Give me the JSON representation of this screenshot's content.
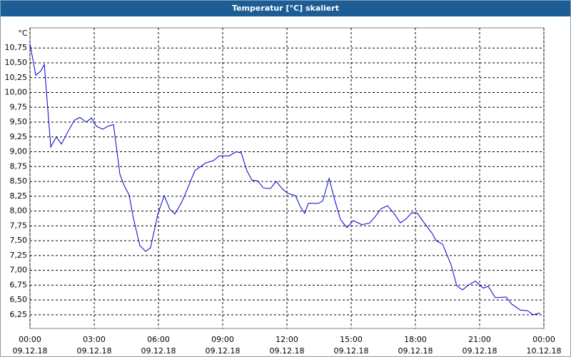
{
  "chart_data": {
    "type": "line",
    "title": "Temperatur [°C] skaliert",
    "ylabel": "°C",
    "grid": true,
    "ylim": [
      6.02,
      11.09
    ],
    "yticks": [
      {
        "value": 6.25,
        "label": "6,25"
      },
      {
        "value": 6.5,
        "label": "6,50"
      },
      {
        "value": 6.75,
        "label": "6,75"
      },
      {
        "value": 7,
        "label": "7,00"
      },
      {
        "value": 7.25,
        "label": "7,25"
      },
      {
        "value": 7.5,
        "label": "7,50"
      },
      {
        "value": 7.75,
        "label": "7,75"
      },
      {
        "value": 8,
        "label": "8,00"
      },
      {
        "value": 8.25,
        "label": "8,25"
      },
      {
        "value": 8.5,
        "label": "8,50"
      },
      {
        "value": 8.75,
        "label": "8,75"
      },
      {
        "value": 9,
        "label": "9,00"
      },
      {
        "value": 9.25,
        "label": "9,25"
      },
      {
        "value": 9.5,
        "label": "9,50"
      },
      {
        "value": 9.75,
        "label": "9,75"
      },
      {
        "value": 10,
        "label": "10,00"
      },
      {
        "value": 10.25,
        "label": "10,25"
      },
      {
        "value": 10.5,
        "label": "10,50"
      },
      {
        "value": 10.75,
        "label": "10,75"
      }
    ],
    "xlim": [
      0,
      24
    ],
    "xticks": [
      {
        "value": 0,
        "label": "00:00\n09.12.18"
      },
      {
        "value": 3,
        "label": "03:00\n09.12.18"
      },
      {
        "value": 6,
        "label": "06:00\n09.12.18"
      },
      {
        "value": 9,
        "label": "09:00\n09.12.18"
      },
      {
        "value": 12,
        "label": "12:00\n09.12.18"
      },
      {
        "value": 15,
        "label": "15:00\n09.12.18"
      },
      {
        "value": 18,
        "label": "18:00\n09.12.18"
      },
      {
        "value": 21,
        "label": "21:00\n09.12.18"
      },
      {
        "value": 24,
        "label": "00:00\n10.12.18"
      }
    ],
    "x": [
      0,
      0.27,
      0.5,
      0.67,
      0.97,
      1.23,
      1.47,
      1.73,
      2.07,
      2.33,
      2.63,
      2.87,
      3.1,
      3.4,
      3.63,
      3.9,
      4.2,
      4.4,
      4.63,
      4.83,
      5.13,
      5.4,
      5.63,
      5.97,
      6.27,
      6.53,
      6.77,
      7.1,
      7.37,
      7.7,
      8.2,
      8.57,
      8.83,
      9.3,
      9.63,
      9.87,
      10.13,
      10.37,
      10.63,
      10.9,
      11.23,
      11.5,
      11.77,
      12.03,
      12.4,
      12.63,
      12.83,
      13,
      13.47,
      13.67,
      13.97,
      14.23,
      14.5,
      14.8,
      15.1,
      15.5,
      15.87,
      16.13,
      16.4,
      16.7,
      17,
      17.3,
      17.57,
      17.83,
      18.1,
      18.37,
      18.77,
      18.97,
      19.27,
      19.67,
      19.93,
      20.2,
      20.43,
      20.8,
      21.17,
      21.4,
      21.73,
      22.23,
      22.5,
      22.9,
      23.23,
      23.5,
      23.83
    ],
    "series": [
      {
        "color": "#0000cc",
        "values": [
          10.82,
          10.29,
          10.36,
          10.47,
          9.08,
          9.25,
          9.13,
          9.31,
          9.53,
          9.58,
          9.5,
          9.57,
          9.43,
          9.38,
          9.43,
          9.46,
          8.62,
          8.43,
          8.27,
          7.88,
          7.42,
          7.32,
          7.38,
          7.95,
          8.26,
          8.03,
          7.95,
          8.16,
          8.39,
          8.68,
          8.81,
          8.85,
          8.93,
          8.93,
          9,
          8.98,
          8.68,
          8.52,
          8.51,
          8.39,
          8.38,
          8.5,
          8.38,
          8.3,
          8.26,
          8.07,
          7.96,
          8.13,
          8.13,
          8.17,
          8.55,
          8.19,
          7.86,
          7.72,
          7.84,
          7.77,
          7.8,
          7.91,
          8.04,
          8.09,
          7.96,
          7.8,
          7.87,
          7.97,
          7.96,
          7.82,
          7.63,
          7.5,
          7.44,
          7.09,
          6.74,
          6.67,
          6.74,
          6.82,
          6.7,
          6.73,
          6.54,
          6.55,
          6.43,
          6.33,
          6.32,
          6.25,
          6.28
        ]
      }
    ]
  }
}
